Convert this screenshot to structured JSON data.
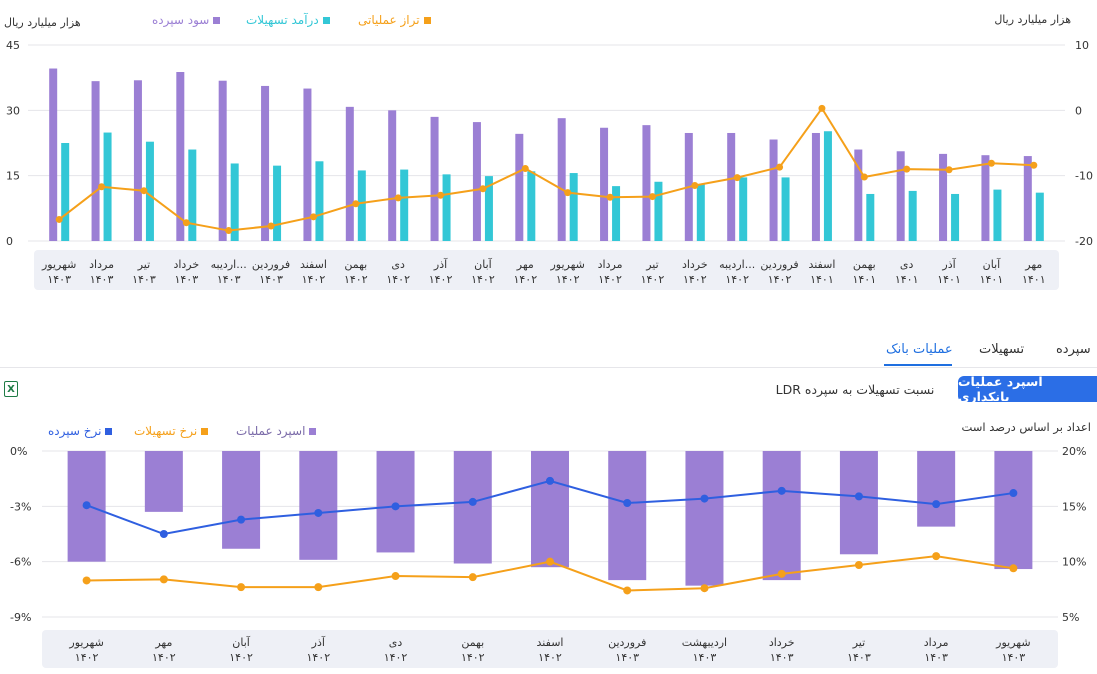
{
  "top_panel": {
    "legend": [
      {
        "label": "سود سپرده",
        "color": "#9b7fd4"
      },
      {
        "label": "درآمد تسهیلات",
        "color": "#33c7d6"
      },
      {
        "label": "تراز عملیاتی",
        "color": "#f5a01a"
      }
    ],
    "left_axis_unit": "هزار میلیارد ریال",
    "right_axis_unit": "هزار میلیارد ریال"
  },
  "bottom_panel": {
    "tabs": [
      {
        "label": "سپرده",
        "active": false
      },
      {
        "label": "تسهیلات",
        "active": false
      },
      {
        "label": "عملیات بانک",
        "active": true
      }
    ],
    "buttons": {
      "spread": "اسپرد عملیات بانکداری",
      "ldr": "نسبت تسهیلات به سپرده LDR"
    },
    "note": "اعداد بر اساس درصد است",
    "excel_icon": "excel-export-icon",
    "legend": [
      {
        "label": "اسپرد عملیات",
        "color": "#9b7fd4"
      },
      {
        "label": "نرخ تسهیلات",
        "color": "#f5a01a"
      },
      {
        "label": "نرخ سپرده",
        "color": "#2f5fe0"
      }
    ]
  },
  "chart_data": [
    {
      "type": "bar",
      "categories": [
        [
          "مهر",
          "۱۴۰۱"
        ],
        [
          "آبان",
          "۱۴۰۱"
        ],
        [
          "آذر",
          "۱۴۰۱"
        ],
        [
          "دی",
          "۱۴۰۱"
        ],
        [
          "بهمن",
          "۱۴۰۱"
        ],
        [
          "اسفند",
          "۱۴۰۱"
        ],
        [
          "فروردین",
          "۱۴۰۲"
        ],
        [
          "اردیبه...",
          "۱۴۰۲"
        ],
        [
          "خرداد",
          "۱۴۰۲"
        ],
        [
          "تیر",
          "۱۴۰۲"
        ],
        [
          "مرداد",
          "۱۴۰۲"
        ],
        [
          "شهریور",
          "۱۴۰۲"
        ],
        [
          "مهر",
          "۱۴۰۲"
        ],
        [
          "آبان",
          "۱۴۰۲"
        ],
        [
          "آذر",
          "۱۴۰۲"
        ],
        [
          "دی",
          "۱۴۰۲"
        ],
        [
          "بهمن",
          "۱۴۰۲"
        ],
        [
          "اسفند",
          "۱۴۰۲"
        ],
        [
          "فروردین",
          "۱۴۰۳"
        ],
        [
          "اردیبه...",
          "۱۴۰۳"
        ],
        [
          "خرداد",
          "۱۴۰۳"
        ],
        [
          "تیر",
          "۱۴۰۳"
        ],
        [
          "مرداد",
          "۱۴۰۳"
        ],
        [
          "شهریور",
          "۱۴۰۳"
        ]
      ],
      "series": [
        {
          "name": "سود سپرده",
          "axis": "left",
          "kind": "bar",
          "color": "#9b7fd4",
          "values": [
            19.5,
            19.7,
            20.0,
            20.6,
            21.0,
            24.8,
            23.3,
            24.8,
            24.8,
            26.6,
            26.0,
            28.2,
            24.6,
            27.3,
            28.5,
            30.0,
            30.8,
            35.0,
            35.6,
            36.8,
            38.8,
            36.9,
            36.7,
            39.6
          ]
        },
        {
          "name": "درآمد تسهیلات",
          "axis": "left",
          "kind": "bar",
          "color": "#33c7d6",
          "values": [
            11.1,
            11.8,
            10.8,
            11.5,
            10.8,
            25.2,
            14.6,
            14.6,
            13.1,
            13.6,
            12.6,
            15.6,
            16.0,
            14.9,
            15.3,
            16.4,
            16.2,
            18.3,
            17.3,
            17.8,
            21.0,
            22.8,
            24.9,
            22.5
          ]
        },
        {
          "name": "تراز عملیاتی",
          "axis": "right",
          "kind": "line",
          "color": "#f5a01a",
          "values": [
            -8.4,
            -8.1,
            -9.1,
            -9.0,
            -10.2,
            0.3,
            -8.7,
            -10.3,
            -11.5,
            -13.2,
            -13.3,
            -12.6,
            -8.9,
            -12.0,
            -13.0,
            -13.4,
            -14.3,
            -16.3,
            -17.7,
            -18.4,
            -17.2,
            -12.3,
            -11.7,
            -16.7
          ]
        }
      ],
      "left_axis": {
        "ticks": [
          "0",
          "15",
          "30",
          "45"
        ],
        "range": [
          0,
          45
        ]
      },
      "right_axis": {
        "ticks": [
          "-20",
          "-10",
          "0",
          "10"
        ],
        "range": [
          -20,
          10
        ]
      },
      "grid": true
    },
    {
      "type": "bar",
      "categories": [
        [
          "شهریور",
          "۱۴۰۲"
        ],
        [
          "مهر",
          "۱۴۰۲"
        ],
        [
          "آبان",
          "۱۴۰۲"
        ],
        [
          "آذر",
          "۱۴۰۲"
        ],
        [
          "دی",
          "۱۴۰۲"
        ],
        [
          "بهمن",
          "۱۴۰۲"
        ],
        [
          "اسفند",
          "۱۴۰۲"
        ],
        [
          "فروردین",
          "۱۴۰۳"
        ],
        [
          "اردیبهشت",
          "۱۴۰۳"
        ],
        [
          "خرداد",
          "۱۴۰۳"
        ],
        [
          "تیر",
          "۱۴۰۳"
        ],
        [
          "مرداد",
          "۱۴۰۳"
        ],
        [
          "شهریور",
          "۱۴۰۳"
        ]
      ],
      "series": [
        {
          "name": "اسپرد عملیات",
          "axis": "left",
          "kind": "bar",
          "color": "#9b7fd4",
          "values": [
            -6.0,
            -3.3,
            -5.3,
            -5.9,
            -5.5,
            -6.1,
            -6.3,
            -7.0,
            -7.3,
            -7.0,
            -5.6,
            -4.1,
            -6.4
          ]
        },
        {
          "name": "نرخ سپرده",
          "axis": "right",
          "kind": "line",
          "color": "#2f5fe0",
          "values": [
            15.1,
            12.5,
            13.8,
            14.4,
            15.0,
            15.4,
            17.3,
            15.3,
            15.7,
            16.4,
            15.9,
            15.2,
            16.2
          ]
        },
        {
          "name": "نرخ تسهیلات",
          "axis": "right",
          "kind": "line",
          "color": "#f5a01a",
          "values": [
            8.3,
            8.4,
            7.7,
            7.7,
            8.7,
            8.6,
            10.0,
            7.4,
            7.6,
            8.9,
            9.7,
            10.5,
            9.4
          ]
        }
      ],
      "left_axis": {
        "ticks": [
          "0%",
          "-3%",
          "-6%",
          "-9%"
        ],
        "range": [
          -9,
          0
        ]
      },
      "right_axis": {
        "ticks": [
          "20%",
          "15%",
          "10%",
          "5%"
        ],
        "range": [
          5,
          20
        ]
      },
      "grid": true
    }
  ]
}
